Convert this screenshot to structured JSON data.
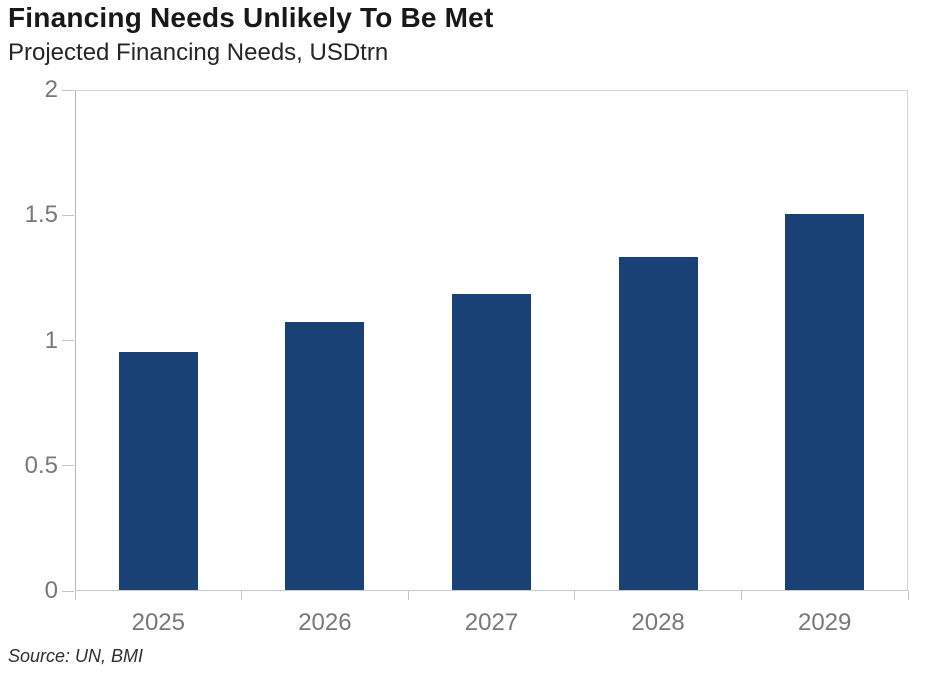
{
  "header": {
    "title": "Financing Needs Unlikely To Be Met",
    "subtitle": "Projected Financing Needs, USDtrn"
  },
  "footer": {
    "source": "Source: UN, BMI"
  },
  "chart_data": {
    "type": "bar",
    "title": "Financing Needs Unlikely To Be Met",
    "subtitle": "Projected Financing Needs, USDtrn",
    "categories": [
      "2025",
      "2026",
      "2027",
      "2028",
      "2029"
    ],
    "values": [
      0.95,
      1.07,
      1.18,
      1.33,
      1.5
    ],
    "series_name": "Projected Financing Needs",
    "xlabel": "",
    "ylabel": "USDtrn",
    "ylim": [
      0,
      2
    ],
    "yticks": [
      {
        "value": 0,
        "label": "0"
      },
      {
        "value": 0.5,
        "label": "0.5"
      },
      {
        "value": 1,
        "label": "1"
      },
      {
        "value": 1.5,
        "label": "1.5"
      },
      {
        "value": 2,
        "label": "2"
      }
    ],
    "grid": false,
    "legend": "none",
    "source": "Source: UN, BMI"
  },
  "colors": {
    "bar": "#1a4176",
    "axis_line": "#b4b6b8",
    "plot_border": "#d5d5d5",
    "baseline": "#c3ccd8",
    "tick_mark": "#bcc6d2",
    "tick_label": "#77787b",
    "background": "#ffffff"
  }
}
